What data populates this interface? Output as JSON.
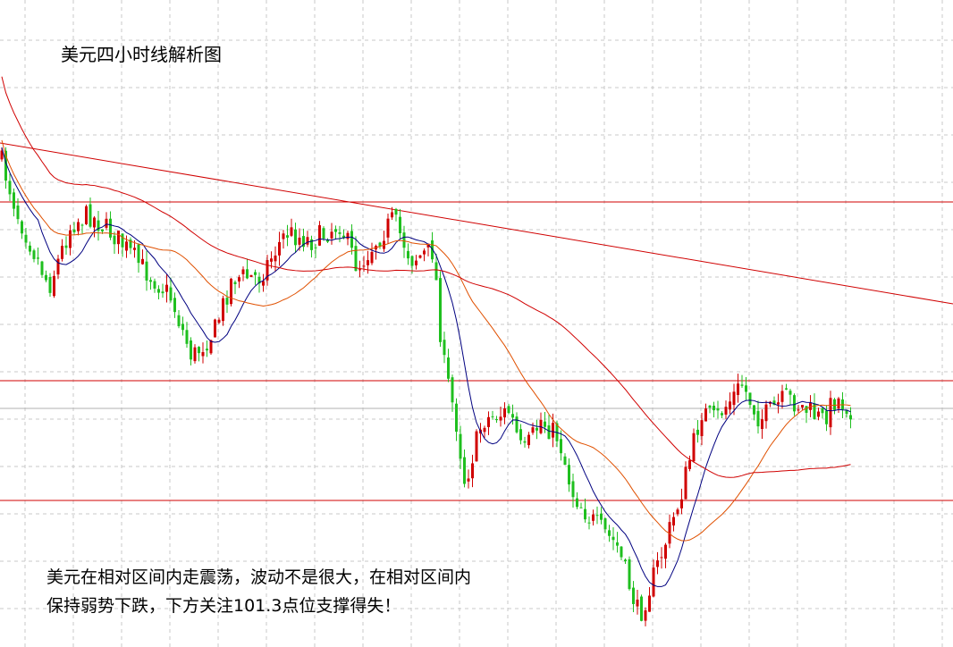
{
  "title": "美元四小时线解析图",
  "annotation": {
    "lines": [
      "美元在相对区间内走震荡，波动不是很大，在相对区间内",
      "保持弱势下跌，下方关注101.3点位支撑得失！"
    ]
  }
}
